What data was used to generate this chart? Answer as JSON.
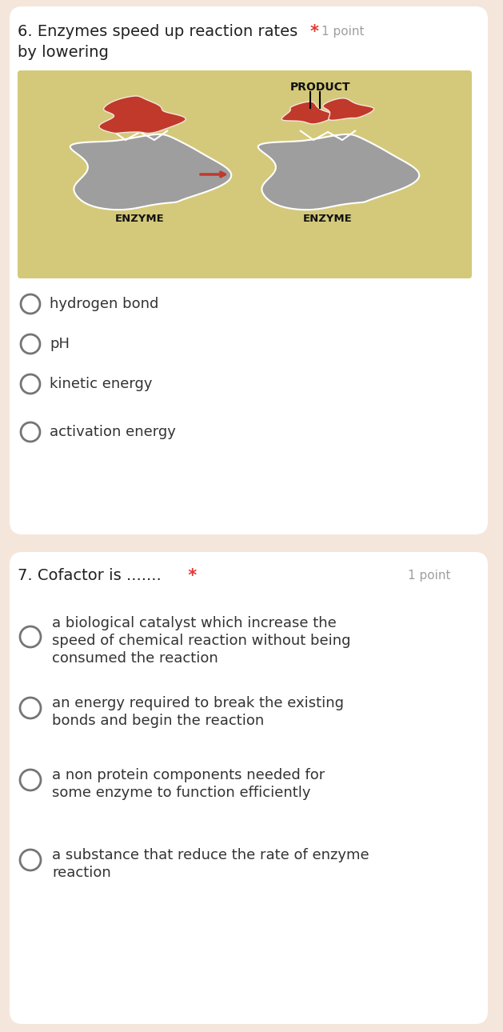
{
  "bg_color": "#f5e6dc",
  "card1_bg": "#ffffff",
  "card2_bg": "#ffffff",
  "q1_number": "6.",
  "q1_text": "Enzymes speed up reaction rates",
  "q1_text2": "by lowering",
  "q1_star": "*",
  "q1_point": "1 point",
  "q1_options": [
    "hydrogen bond",
    "pH",
    "kinetic energy",
    "activation energy"
  ],
  "q2_number": "7.",
  "q2_text_main": "7. Cofactor is ....... ",
  "q2_star": "*",
  "q2_point": "1 point",
  "q2_options": [
    "a biological catalyst which increase the\nspeed of chemical reaction without being\nconsumed the reaction",
    "an energy required to break the existing\nbonds and begin the reaction",
    "a non protein components needed for\nsome enzyme to function efficiently",
    "a substance that reduce the rate of enzyme\nreaction"
  ],
  "star_color": "#e53935",
  "point_color": "#9e9e9e",
  "text_color": "#212121",
  "option_color": "#333333",
  "circle_edge_color": "#757575",
  "diagram_bg": "#d4c97a",
  "enzyme_color": "#9e9e9e",
  "substrate_color": "#c0392b",
  "font_size_q": 14,
  "font_size_opt": 13,
  "font_size_point": 11,
  "font_size_diagram": 9
}
